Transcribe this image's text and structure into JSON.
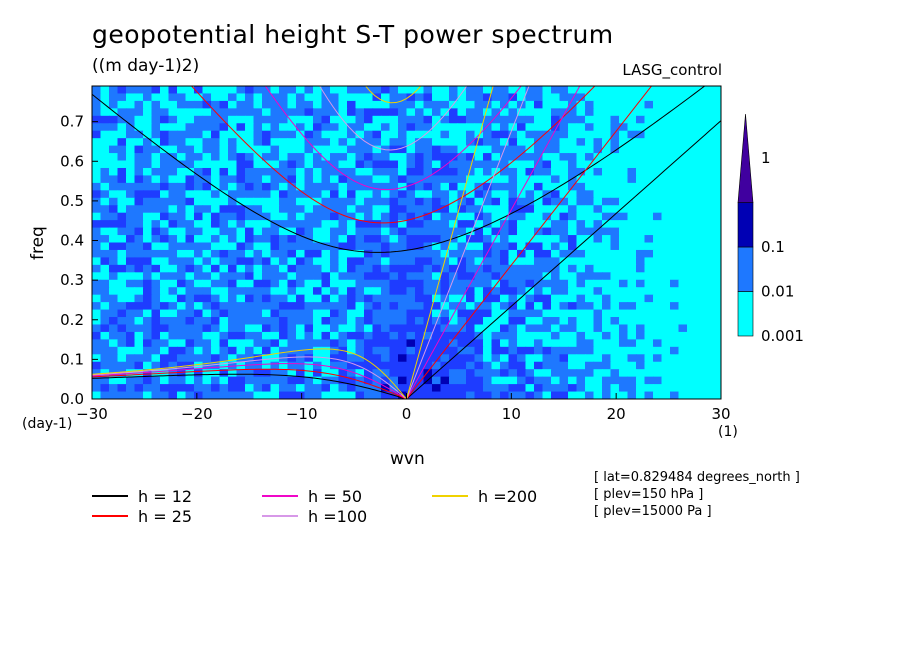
{
  "chart_data": {
    "type": "heatmap",
    "title": "geopotential height S-T power spectrum",
    "subtitle": "((m day-1)2)",
    "run_label": "LASG_control",
    "xlabel": "wvn",
    "ylabel": "freq",
    "x_unit": "(1)",
    "y_unit": "(day-1)",
    "xlim": [
      -30,
      30
    ],
    "ylim": [
      0,
      0.79
    ],
    "x_ticks": [
      "−30",
      "−20",
      "−10",
      "0",
      "10",
      "20",
      "30"
    ],
    "x_tick_values": [
      -30,
      -20,
      -10,
      0,
      10,
      20,
      30
    ],
    "y_ticks": [
      "0.0",
      "0.1",
      "0.2",
      "0.3",
      "0.4",
      "0.5",
      "0.6",
      "0.7"
    ],
    "y_tick_values": [
      0,
      0.1,
      0.2,
      0.3,
      0.4,
      0.5,
      0.6,
      0.7
    ],
    "colorbar": {
      "levels": [
        0.001,
        0.01,
        0.1,
        1
      ],
      "labels": [
        "0.001",
        "0.01",
        "0.1",
        "1"
      ],
      "colors": [
        "#00ffff",
        "#1e78ff",
        "#1e3cff",
        "#0000b4",
        "#40009f"
      ]
    },
    "dispersion_curves": [
      {
        "name": "h = 12",
        "h": 12,
        "color": "#000000"
      },
      {
        "name": "h = 25",
        "h": 25,
        "color": "#ff0000"
      },
      {
        "name": "h = 50",
        "h": 50,
        "color": "#f006c8"
      },
      {
        "name": "h =100",
        "h": 100,
        "color": "#d798e8"
      },
      {
        "name": "h =200",
        "h": 200,
        "color": "#f0d200"
      }
    ],
    "metadata": [
      "[ lat=0.829484 degrees_north ]",
      "[ plev=150 hPa ]",
      "[ plev=15000 Pa ]"
    ]
  }
}
